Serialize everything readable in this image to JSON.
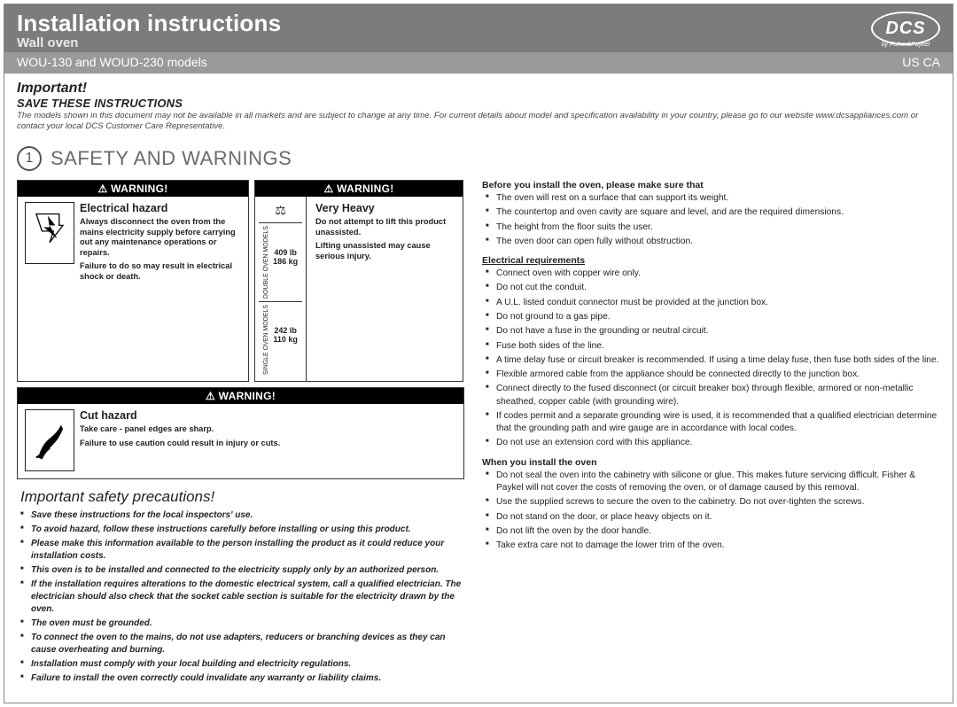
{
  "header": {
    "title": "Installation instructions",
    "subtitle": "Wall oven",
    "models": "WOU-130 and WOUD-230 models",
    "region": "US CA",
    "logo_text": "DCS",
    "logo_tag": "by Fisher&Paykel"
  },
  "intro": {
    "important": "Important!",
    "save": "SAVE THESE INSTRUCTIONS",
    "fine": "The models shown in this document may not be available in all markets and are subject to change at any time. For current details about model and specification availability in your country, please go to our website www.dcsappliances.com or contact your local DCS Customer Care Representative."
  },
  "section": {
    "num": "1",
    "title": "SAFETY AND WARNINGS"
  },
  "warn": {
    "label": "WARNING!",
    "electrical": {
      "title": "Electrical hazard",
      "p1": "Always disconnect the oven from the mains electricity supply before carrying out any maintenance operations or repairs.",
      "p2": "Failure to do so may result in electrical shock or death."
    },
    "heavy": {
      "title": "Very Heavy",
      "p1": "Do not attempt to lift this product unassisted.",
      "p2": "Lifting unassisted may cause serious injury.",
      "double_label": "DOUBLE OVEN MODELS",
      "double_wt": "409 lb\n186 kg",
      "single_label": "SINGLE OVEN MODELS",
      "single_wt": "242 lb\n110 kg"
    },
    "cut": {
      "title": "Cut hazard",
      "p1": "Take care - panel edges are sharp.",
      "p2": "Failure to use caution could result in injury or cuts."
    }
  },
  "isp_title": "Important safety precautions!",
  "precautions": [
    "Save these instructions for the local inspectors' use.",
    "To avoid hazard, follow these instructions carefully before installing or using this product.",
    "Please make this information available to the person installing the product as it could reduce your installation costs.",
    "This oven is to be installed and connected to the electricity supply only by an authorized person.",
    "If the installation requires alterations to the domestic electrical system, call a qualified electrician. The electrician should also check that the socket cable section is suitable for the electricity drawn by the oven.",
    "The oven must be grounded.",
    "To connect the oven to the mains, do not use adapters, reducers or branching devices as they can cause overheating and burning.",
    "Installation must comply with your local building and electricity regulations.",
    "Failure to install the oven correctly could invalidate any warranty or liability claims."
  ],
  "before": {
    "title": "Before you install the oven, please make sure that",
    "items": [
      "The oven will rest on a surface that can support its weight.",
      "The countertop and oven cavity are square and level, and are the required dimensions.",
      "The height from the floor suits the user.",
      "The oven door can open fully without obstruction."
    ]
  },
  "elec": {
    "title": "Electrical requirements",
    "items": [
      "Connect oven with copper wire only.",
      "Do not cut the conduit.",
      "A U.L. listed conduit connector must be provided at the junction box.",
      "Do not ground to a gas pipe.",
      "Do not have a fuse in the grounding or neutral circuit.",
      "Fuse both sides of the line.",
      "A time delay fuse or circuit breaker is recommended.  If using a time delay fuse, then fuse both sides of the line.",
      "Flexible armored cable from the appliance should be connected directly to the junction box.",
      "Connect directly to the fused disconnect (or circuit breaker box) through flexible, armored or non-metallic sheathed, copper cable (with grounding wire).",
      "If codes permit and a separate grounding wire is used, it is recommended that a qualified electrician determine that the grounding path and wire gauge are in accordance with local codes.",
      "Do not use an extension cord with this appliance."
    ]
  },
  "when": {
    "title": "When you install the oven",
    "items": [
      "Do not seal the oven into the cabinetry with silicone or glue. This makes future servicing difficult. Fisher & Paykel will not cover the costs of removing the oven, or of damage caused by this removal.",
      "Use the supplied screws to secure the oven to the cabinetry. Do not over-tighten the screws.",
      "Do not stand on the door, or place heavy objects on it.",
      "Do not lift the oven by the door handle.",
      "Take extra care not to damage the lower trim of the oven."
    ]
  }
}
